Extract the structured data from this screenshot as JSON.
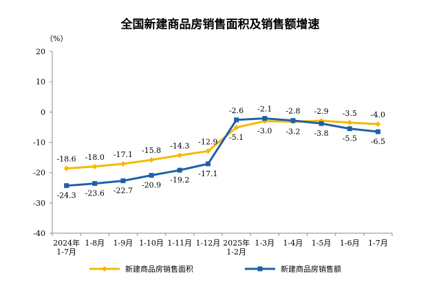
{
  "chart_data": {
    "type": "line",
    "title": "全国新建商品房销售面积及销售额增速",
    "unit_label": "（%）",
    "categories": [
      [
        "2024年",
        "1-7月"
      ],
      [
        "1-8月"
      ],
      [
        "1-9月"
      ],
      [
        "1-10月"
      ],
      [
        "1-11月"
      ],
      [
        "1-12月"
      ],
      [
        "2025年",
        "1-2月"
      ],
      [
        "1-3月"
      ],
      [
        "1-4月"
      ],
      [
        "1-5月"
      ],
      [
        "1-6月"
      ],
      [
        "1-7月"
      ]
    ],
    "y_ticks": [
      20,
      10,
      0,
      -10,
      -20,
      -30,
      -40
    ],
    "ylim": [
      -40,
      20
    ],
    "grid": false,
    "legend_position": "bottom",
    "series": [
      {
        "name": "新建商品房销售面积",
        "color": "#f5b800",
        "marker": "diamond",
        "values": [
          -18.6,
          -18.0,
          -17.1,
          -15.8,
          -14.3,
          -12.9,
          -5.1,
          -3.0,
          -3.2,
          -2.9,
          -3.5,
          -4.0
        ],
        "labels": [
          "-18.6",
          "-18.0",
          "-17.1",
          "-15.8",
          "-14.3",
          "-12.9",
          "-5.1",
          "-3.0",
          "-3.2",
          "-2.9",
          "-3.5",
          "-4.0"
        ],
        "label_side": [
          "above",
          "above",
          "above",
          "above",
          "above",
          "above",
          "below",
          "below",
          "below",
          "above",
          "above",
          "above"
        ]
      },
      {
        "name": "新建商品房销售额",
        "color": "#1f5fa8",
        "marker": "square",
        "values": [
          -24.3,
          -23.6,
          -22.7,
          -20.9,
          -19.2,
          -17.1,
          -2.6,
          -2.1,
          -2.8,
          -3.8,
          -5.5,
          -6.5
        ],
        "labels": [
          "-24.3",
          "-23.6",
          "-22.7",
          "-20.9",
          "-19.2",
          "-17.1",
          "-2.6",
          "-2.1",
          "-2.8",
          "-3.8",
          "-5.5",
          "-6.5"
        ],
        "label_side": [
          "below",
          "below",
          "below",
          "below",
          "below",
          "below",
          "above",
          "above",
          "above",
          "below",
          "below",
          "below"
        ]
      }
    ]
  }
}
